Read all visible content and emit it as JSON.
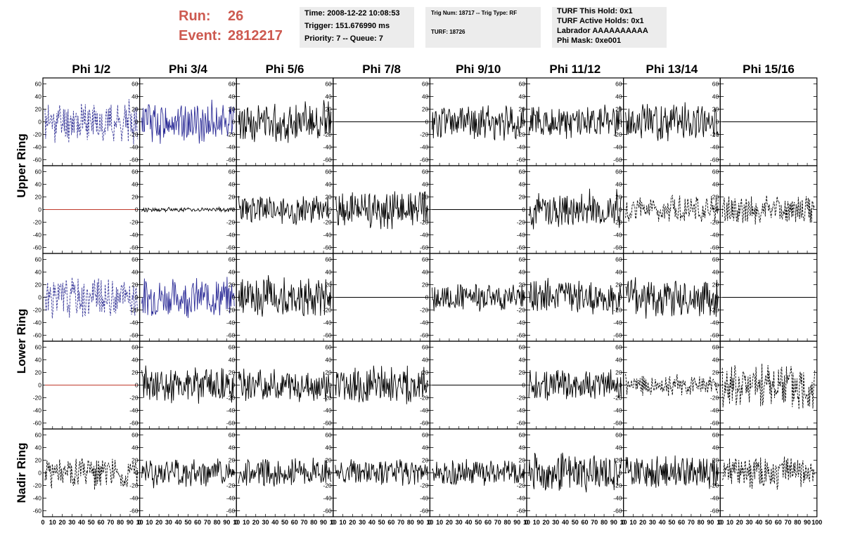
{
  "header": {
    "run_label": "Run:",
    "run_value": "26",
    "event_label": "Event:",
    "event_value": "2812217"
  },
  "info_boxes": [
    {
      "lines": [
        "Time: 2008-12-22 10:08:53",
        "Trigger: 151.676990 ms",
        "Priority: 7 -- Queue: 7"
      ]
    },
    {
      "lines": [
        "Trig Num: 18717 -- Trig Type: RF",
        "TURF: 18726"
      ]
    },
    {
      "lines": [
        "TURF This Hold: 0x1",
        "TURF Active Holds: 0x1",
        "Labrador AAAAAAAAAA",
        "Phi Mask: 0xe001"
      ]
    }
  ],
  "columns": [
    "Phi 1/2",
    "Phi 3/4",
    "Phi 5/6",
    "Phi 7/8",
    "Phi 9/10",
    "Phi 11/12",
    "Phi 13/14",
    "Phi 15/16"
  ],
  "row_groups": [
    "Upper Ring",
    "Lower Ring",
    "Nadir Ring"
  ],
  "chart_data": {
    "type": "line",
    "title": "",
    "xlabel": "",
    "ylabel": "",
    "xlim": [
      0,
      100
    ],
    "ylim": [
      -65,
      65
    ],
    "y_ticks": [
      -60,
      -40,
      -20,
      0,
      20,
      40,
      60
    ],
    "x_ticks": [
      0,
      10,
      20,
      30,
      40,
      50,
      60,
      70,
      80,
      90,
      100
    ],
    "x_tick_labels_shown": [
      "0",
      "10",
      "20",
      "30",
      "40",
      "50",
      "60",
      "70",
      "80",
      "90",
      "10"
    ],
    "x_tick_labels_last_panel": [
      "0",
      "10",
      "20",
      "30",
      "40",
      "50",
      "60",
      "70",
      "80",
      "90",
      "100"
    ],
    "grid": false,
    "panels": [
      {
        "row": 0,
        "col": 0,
        "color": "#3a3a9a",
        "style": "dashed",
        "amplitude": 28,
        "seed": 11
      },
      {
        "row": 0,
        "col": 1,
        "color": "#2a2a96",
        "style": "solid",
        "amplitude": 28,
        "seed": 12
      },
      {
        "row": 0,
        "col": 2,
        "color": "#000000",
        "style": "solid",
        "amplitude": 28,
        "seed": 13
      },
      {
        "row": 0,
        "col": 3,
        "color": "#000000",
        "style": "solid",
        "amplitude": 0,
        "seed": 14
      },
      {
        "row": 0,
        "col": 4,
        "color": "#000000",
        "style": "solid",
        "amplitude": 24,
        "seed": 15
      },
      {
        "row": 0,
        "col": 5,
        "color": "#000000",
        "style": "solid",
        "amplitude": 22,
        "seed": 16
      },
      {
        "row": 0,
        "col": 6,
        "color": "#000000",
        "style": "solid",
        "amplitude": 26,
        "seed": 17
      },
      {
        "row": 0,
        "col": 7,
        "color": "#000000",
        "style": "solid",
        "amplitude": 0,
        "seed": 18
      },
      {
        "row": 1,
        "col": 0,
        "color": "#c0392b",
        "style": "solid",
        "amplitude": 0,
        "seed": 21
      },
      {
        "row": 1,
        "col": 1,
        "color": "#000000",
        "style": "solid",
        "amplitude": 3,
        "seed": 22
      },
      {
        "row": 1,
        "col": 2,
        "color": "#000000",
        "style": "solid",
        "amplitude": 20,
        "seed": 23
      },
      {
        "row": 1,
        "col": 3,
        "color": "#000000",
        "style": "solid",
        "amplitude": 25,
        "seed": 24
      },
      {
        "row": 1,
        "col": 4,
        "color": "#000000",
        "style": "solid",
        "amplitude": 0,
        "seed": 25
      },
      {
        "row": 1,
        "col": 5,
        "color": "#000000",
        "style": "solid",
        "amplitude": 26,
        "seed": 26
      },
      {
        "row": 1,
        "col": 6,
        "color": "#000000",
        "style": "dashed",
        "amplitude": 18,
        "seed": 27
      },
      {
        "row": 1,
        "col": 7,
        "color": "#000000",
        "style": "dashed",
        "amplitude": 20,
        "seed": 28
      },
      {
        "row": 2,
        "col": 0,
        "color": "#3a3a9a",
        "style": "dashed",
        "amplitude": 28,
        "seed": 31
      },
      {
        "row": 2,
        "col": 1,
        "color": "#2a2a96",
        "style": "solid",
        "amplitude": 26,
        "seed": 32
      },
      {
        "row": 2,
        "col": 2,
        "color": "#000000",
        "style": "solid",
        "amplitude": 28,
        "seed": 33
      },
      {
        "row": 2,
        "col": 3,
        "color": "#000000",
        "style": "solid",
        "amplitude": 0,
        "seed": 34
      },
      {
        "row": 2,
        "col": 4,
        "color": "#000000",
        "style": "solid",
        "amplitude": 18,
        "seed": 35
      },
      {
        "row": 2,
        "col": 5,
        "color": "#000000",
        "style": "solid",
        "amplitude": 24,
        "seed": 36
      },
      {
        "row": 2,
        "col": 6,
        "color": "#000000",
        "style": "solid",
        "amplitude": 28,
        "seed": 37
      },
      {
        "row": 2,
        "col": 7,
        "color": "#000000",
        "style": "solid",
        "amplitude": 0,
        "seed": 38
      },
      {
        "row": 3,
        "col": 0,
        "color": "#c0392b",
        "style": "solid",
        "amplitude": 0,
        "seed": 41
      },
      {
        "row": 3,
        "col": 1,
        "color": "#000000",
        "style": "solid",
        "amplitude": 26,
        "seed": 42
      },
      {
        "row": 3,
        "col": 2,
        "color": "#000000",
        "style": "solid",
        "amplitude": 22,
        "seed": 43
      },
      {
        "row": 3,
        "col": 3,
        "color": "#000000",
        "style": "solid",
        "amplitude": 26,
        "seed": 44
      },
      {
        "row": 3,
        "col": 4,
        "color": "#000000",
        "style": "solid",
        "amplitude": 0,
        "seed": 45
      },
      {
        "row": 3,
        "col": 5,
        "color": "#000000",
        "style": "solid",
        "amplitude": 22,
        "seed": 46
      },
      {
        "row": 3,
        "col": 6,
        "color": "#000000",
        "style": "dashed",
        "amplitude": 14,
        "seed": 47
      },
      {
        "row": 3,
        "col": 7,
        "color": "#000000",
        "style": "dashed",
        "amplitude": 34,
        "seed": 48
      },
      {
        "row": 4,
        "col": 0,
        "color": "#000000",
        "style": "dashed",
        "amplitude": 22,
        "seed": 51
      },
      {
        "row": 4,
        "col": 1,
        "color": "#000000",
        "style": "solid",
        "amplitude": 20,
        "seed": 52
      },
      {
        "row": 4,
        "col": 2,
        "color": "#000000",
        "style": "solid",
        "amplitude": 20,
        "seed": 53
      },
      {
        "row": 4,
        "col": 3,
        "color": "#000000",
        "style": "solid",
        "amplitude": 18,
        "seed": 54
      },
      {
        "row": 4,
        "col": 4,
        "color": "#000000",
        "style": "solid",
        "amplitude": 18,
        "seed": 55
      },
      {
        "row": 4,
        "col": 5,
        "color": "#000000",
        "style": "solid",
        "amplitude": 26,
        "seed": 56
      },
      {
        "row": 4,
        "col": 6,
        "color": "#000000",
        "style": "solid",
        "amplitude": 22,
        "seed": 57
      },
      {
        "row": 4,
        "col": 7,
        "color": "#000000",
        "style": "dashed",
        "amplitude": 22,
        "seed": 58
      }
    ]
  }
}
